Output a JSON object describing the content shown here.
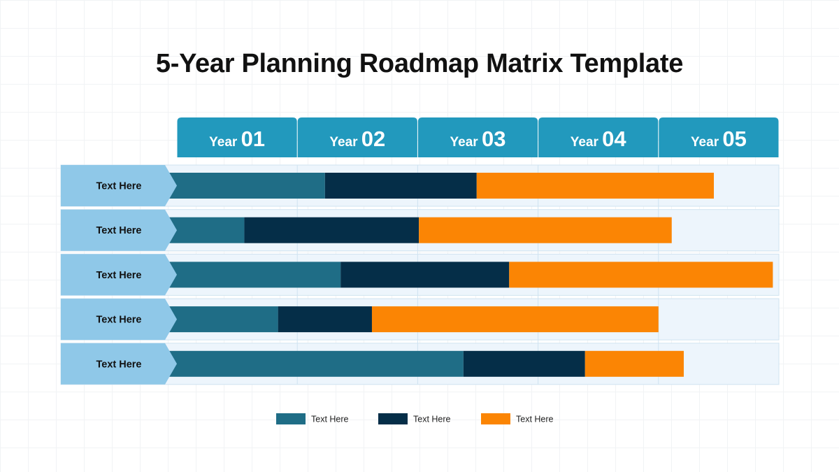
{
  "title": "5-Year Planning Roadmap Matrix Template",
  "colors": {
    "header": "#2299bd",
    "label_arrow": "#8fc8e8",
    "track": "#edf5fc",
    "track_border": "#cfe3f1"
  },
  "chart_data": {
    "type": "bar",
    "stacked": true,
    "orientation": "horizontal",
    "x_axis": {
      "range": [
        0,
        5
      ],
      "columns": [
        {
          "prefix": "Year",
          "number": "01"
        },
        {
          "prefix": "Year",
          "number": "02"
        },
        {
          "prefix": "Year",
          "number": "03"
        },
        {
          "prefix": "Year",
          "number": "04"
        },
        {
          "prefix": "Year",
          "number": "05"
        }
      ]
    },
    "categories": [
      "Text Here",
      "Text Here",
      "Text Here",
      "Text Here",
      "Text Here"
    ],
    "series": [
      {
        "name": "Text Here",
        "color": "#1f6d86",
        "values": [
          1.23,
          0.56,
          1.36,
          0.84,
          2.38
        ]
      },
      {
        "name": "Text Here",
        "color": "#052e48",
        "values": [
          1.26,
          1.45,
          1.4,
          0.78,
          1.01
        ]
      },
      {
        "name": "Text Here",
        "color": "#fb8504",
        "values": [
          1.97,
          2.1,
          2.19,
          2.38,
          0.82
        ]
      }
    ],
    "legend_position": "bottom-center"
  }
}
